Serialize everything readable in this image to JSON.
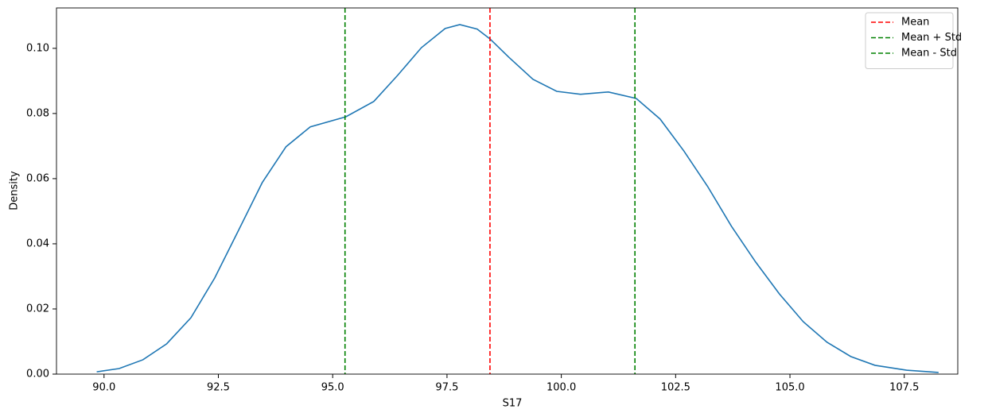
{
  "chart_data": {
    "type": "line",
    "xlabel": "S17",
    "ylabel": "Density",
    "series": [
      {
        "color": "#1f77b4",
        "x": [
          89.84,
          90.33,
          90.85,
          91.37,
          91.9,
          92.42,
          92.94,
          93.46,
          93.98,
          94.51,
          95.29,
          95.9,
          96.42,
          96.94,
          97.46,
          97.78,
          98.16,
          98.44,
          98.85,
          99.38,
          99.9,
          100.42,
          101.03,
          101.64,
          102.16,
          102.68,
          103.2,
          103.72,
          104.25,
          104.77,
          105.29,
          105.81,
          106.33,
          106.86,
          107.55,
          108.25
        ],
        "values": [
          0.0007,
          0.0017,
          0.0044,
          0.0093,
          0.0173,
          0.0295,
          0.0441,
          0.0588,
          0.0698,
          0.0759,
          0.079,
          0.0837,
          0.0917,
          0.1002,
          0.1061,
          0.1073,
          0.1059,
          0.1029,
          0.0973,
          0.0905,
          0.0868,
          0.0859,
          0.0866,
          0.0846,
          0.0783,
          0.0685,
          0.0576,
          0.0454,
          0.0344,
          0.0246,
          0.0161,
          0.0098,
          0.0054,
          0.0027,
          0.0012,
          0.0005
        ]
      }
    ],
    "vlines": [
      {
        "name": "Mean",
        "color": "#ff0000",
        "x": 98.44
      },
      {
        "name": "Mean + Std",
        "color": "#008000",
        "x": 101.61
      },
      {
        "name": "Mean - Std",
        "color": "#008000",
        "x": 95.27
      }
    ],
    "xlim": [
      88.96,
      108.67
    ],
    "ylim": [
      0,
      0.1124
    ],
    "xticks": [
      {
        "value": 90,
        "label": "90.0"
      },
      {
        "value": 92.5,
        "label": "92.5"
      },
      {
        "value": 95,
        "label": "95.0"
      },
      {
        "value": 97.5,
        "label": "97.5"
      },
      {
        "value": 100,
        "label": "100.0"
      },
      {
        "value": 102.5,
        "label": "102.5"
      },
      {
        "value": 105,
        "label": "105.0"
      },
      {
        "value": 107.5,
        "label": "107.5"
      }
    ],
    "yticks": [
      {
        "value": 0,
        "label": "0.00"
      },
      {
        "value": 0.02,
        "label": "0.02"
      },
      {
        "value": 0.04,
        "label": "0.04"
      },
      {
        "value": 0.06,
        "label": "0.06"
      },
      {
        "value": 0.08,
        "label": "0.08"
      },
      {
        "value": 0.1,
        "label": "0.10"
      }
    ],
    "legend": "upper right"
  }
}
